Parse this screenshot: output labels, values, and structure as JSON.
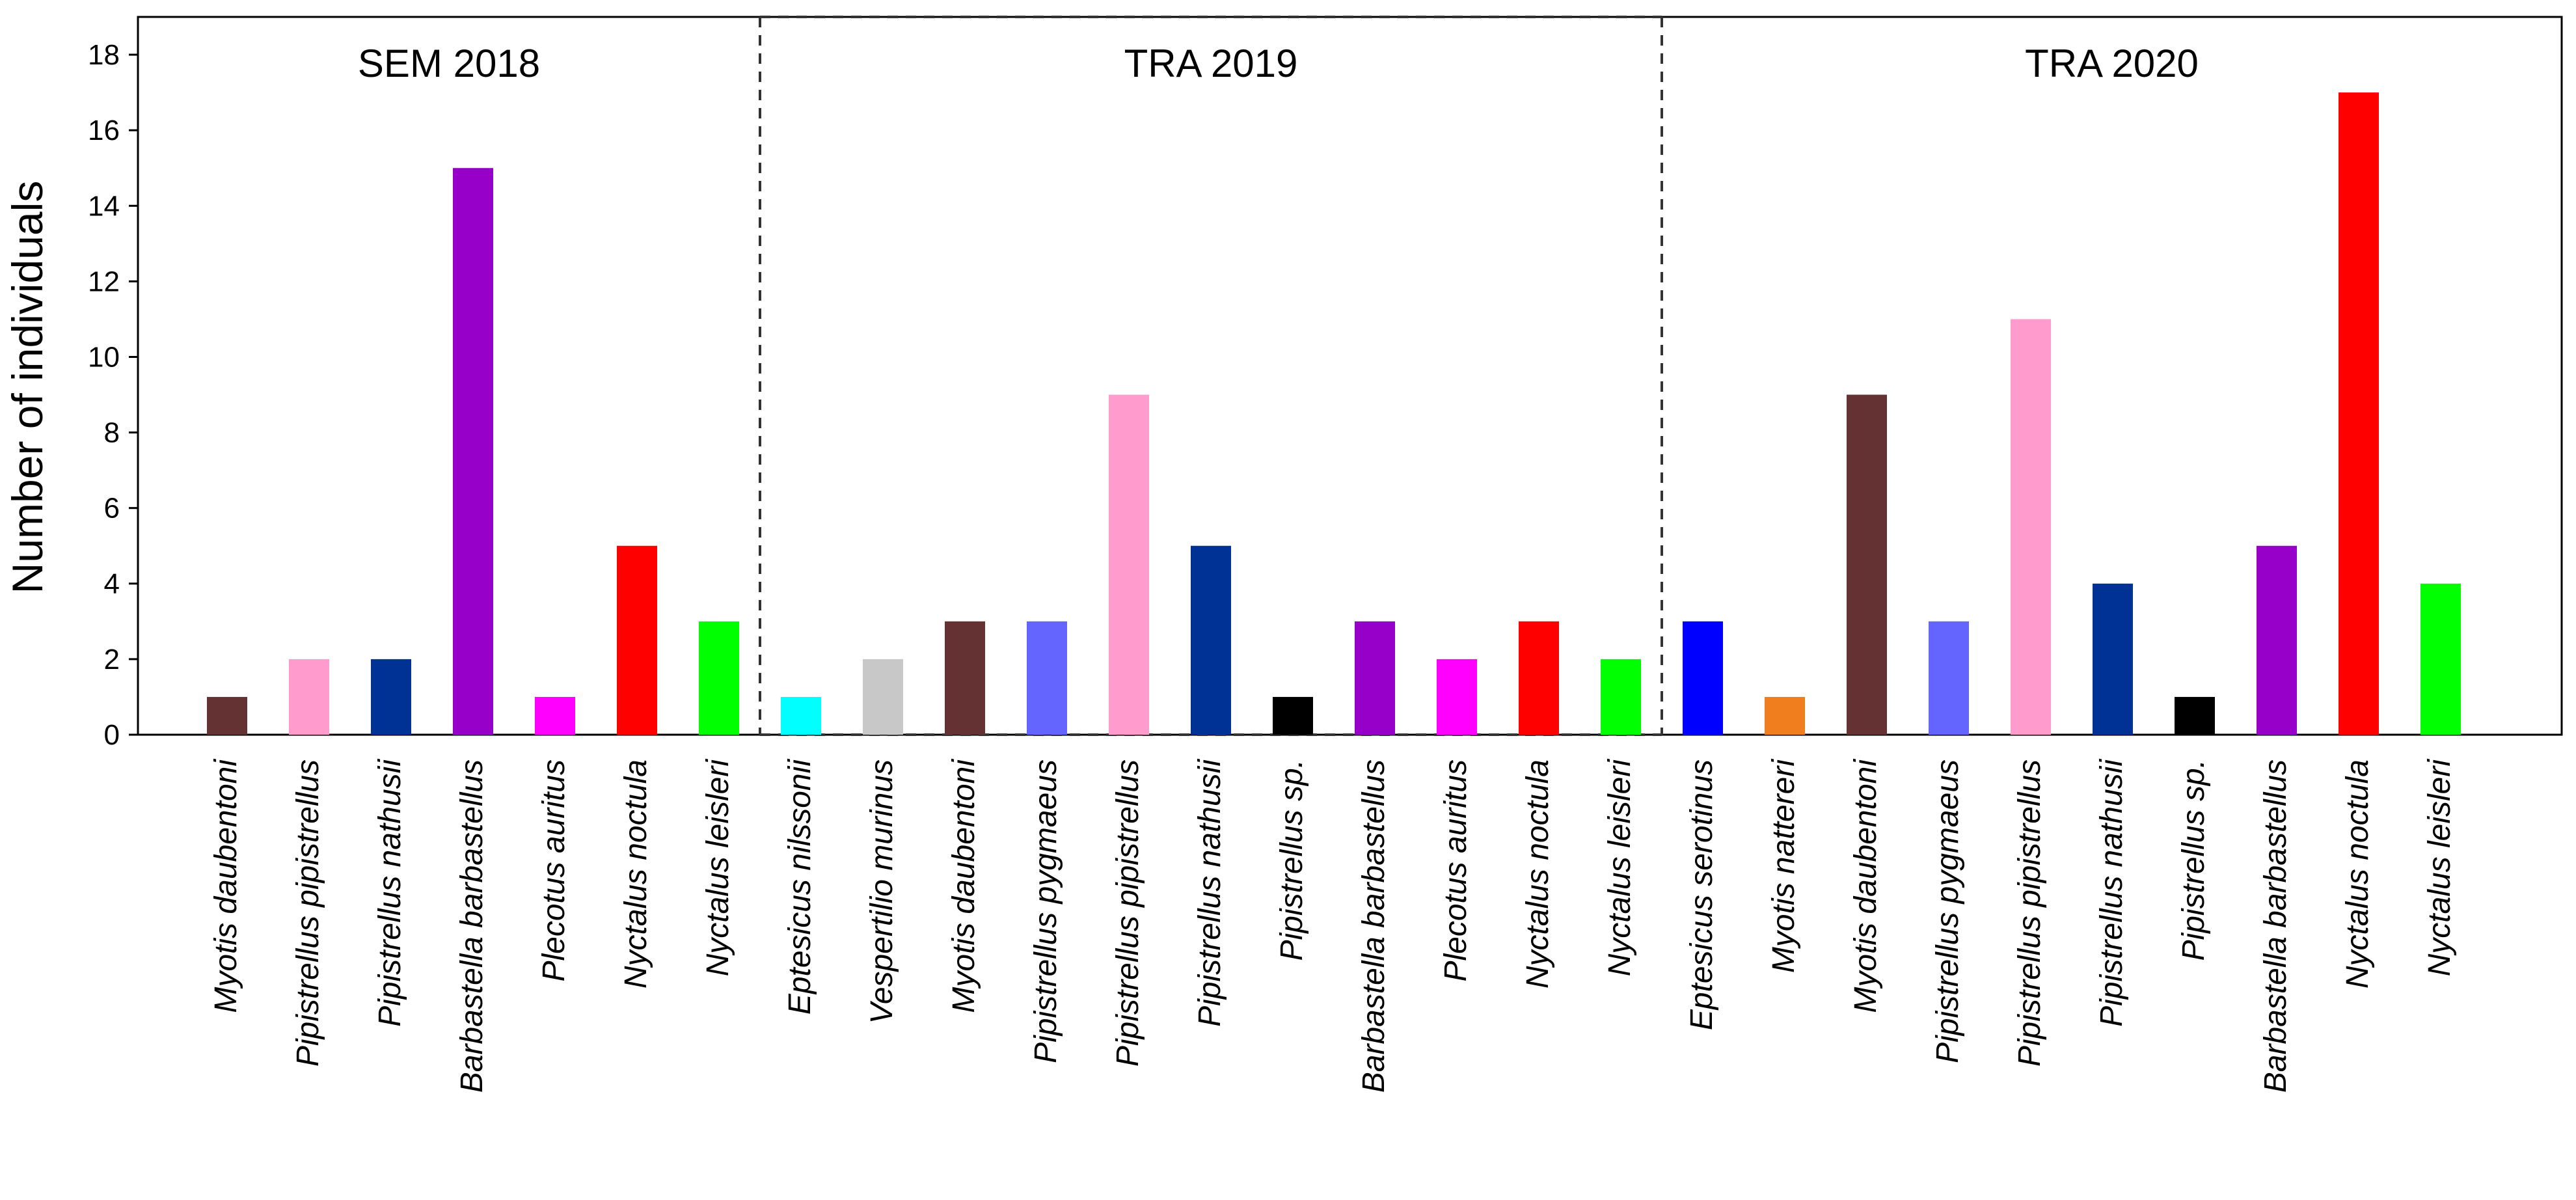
{
  "chart_data": {
    "type": "bar",
    "title": "",
    "xlabel": "",
    "ylabel": "Number of individuals",
    "ylim": [
      0,
      19
    ],
    "yticks": [
      0,
      2,
      4,
      6,
      8,
      10,
      12,
      14,
      16,
      18
    ],
    "grid": false,
    "groups": [
      {
        "name": "SEM 2018",
        "bars": [
          {
            "label": "Myotis daubentoni",
            "value": 1,
            "color": "#643232"
          },
          {
            "label": "Pipistrellus pipistrellus",
            "value": 2,
            "color": "#ff9bcd"
          },
          {
            "label": "Pipistrellus nathusii",
            "value": 2,
            "color": "#003296"
          },
          {
            "label": "Barbastella barbastellus",
            "value": 15,
            "color": "#9600c8"
          },
          {
            "label": "Plecotus auritus",
            "value": 1,
            "color": "#ff00ff"
          },
          {
            "label": "Nyctalus noctula",
            "value": 5,
            "color": "#ff0000"
          },
          {
            "label": "Nyctalus leisleri",
            "value": 3,
            "color": "#00ff00"
          }
        ]
      },
      {
        "name": "TRA 2019",
        "bars": [
          {
            "label": "Eptesicus nilssonii",
            "value": 1,
            "color": "#00ffff"
          },
          {
            "label": "Vespertilio murinus",
            "value": 2,
            "color": "#c8c8c8"
          },
          {
            "label": "Myotis daubentoni",
            "value": 3,
            "color": "#643232"
          },
          {
            "label": "Pipistrellus pygmaeus",
            "value": 3,
            "color": "#6464ff"
          },
          {
            "label": "Pipistrellus pipistrellus",
            "value": 9,
            "color": "#ff9bcd"
          },
          {
            "label": "Pipistrellus nathusii",
            "value": 5,
            "color": "#003296"
          },
          {
            "label": "Pipistrellus sp.",
            "value": 1,
            "color": "#000000"
          },
          {
            "label": "Barbastella barbastellus",
            "value": 3,
            "color": "#9600c8"
          },
          {
            "label": "Plecotus auritus",
            "value": 2,
            "color": "#ff00ff"
          },
          {
            "label": "Nyctalus noctula",
            "value": 3,
            "color": "#ff0000"
          },
          {
            "label": "Nyctalus leisleri",
            "value": 2,
            "color": "#00ff00"
          }
        ]
      },
      {
        "name": "TRA 2020",
        "bars": [
          {
            "label": "Eptesicus serotinus",
            "value": 3,
            "color": "#0000ff"
          },
          {
            "label": "Myotis nattereri",
            "value": 1,
            "color": "#f07d1e"
          },
          {
            "label": "Myotis daubentoni",
            "value": 9,
            "color": "#643232"
          },
          {
            "label": "Pipistrellus pygmaeus",
            "value": 3,
            "color": "#6464ff"
          },
          {
            "label": "Pipistrellus pipistrellus",
            "value": 11,
            "color": "#ff9bcd"
          },
          {
            "label": "Pipistrellus nathusii",
            "value": 4,
            "color": "#003296"
          },
          {
            "label": "Pipistrellus sp.",
            "value": 1,
            "color": "#000000"
          },
          {
            "label": "Barbastella barbastellus",
            "value": 5,
            "color": "#9600c8"
          },
          {
            "label": "Nyctalus noctula",
            "value": 17,
            "color": "#ff0000"
          },
          {
            "label": "Nyctalus leisleri",
            "value": 4,
            "color": "#00ff00"
          }
        ]
      }
    ]
  }
}
